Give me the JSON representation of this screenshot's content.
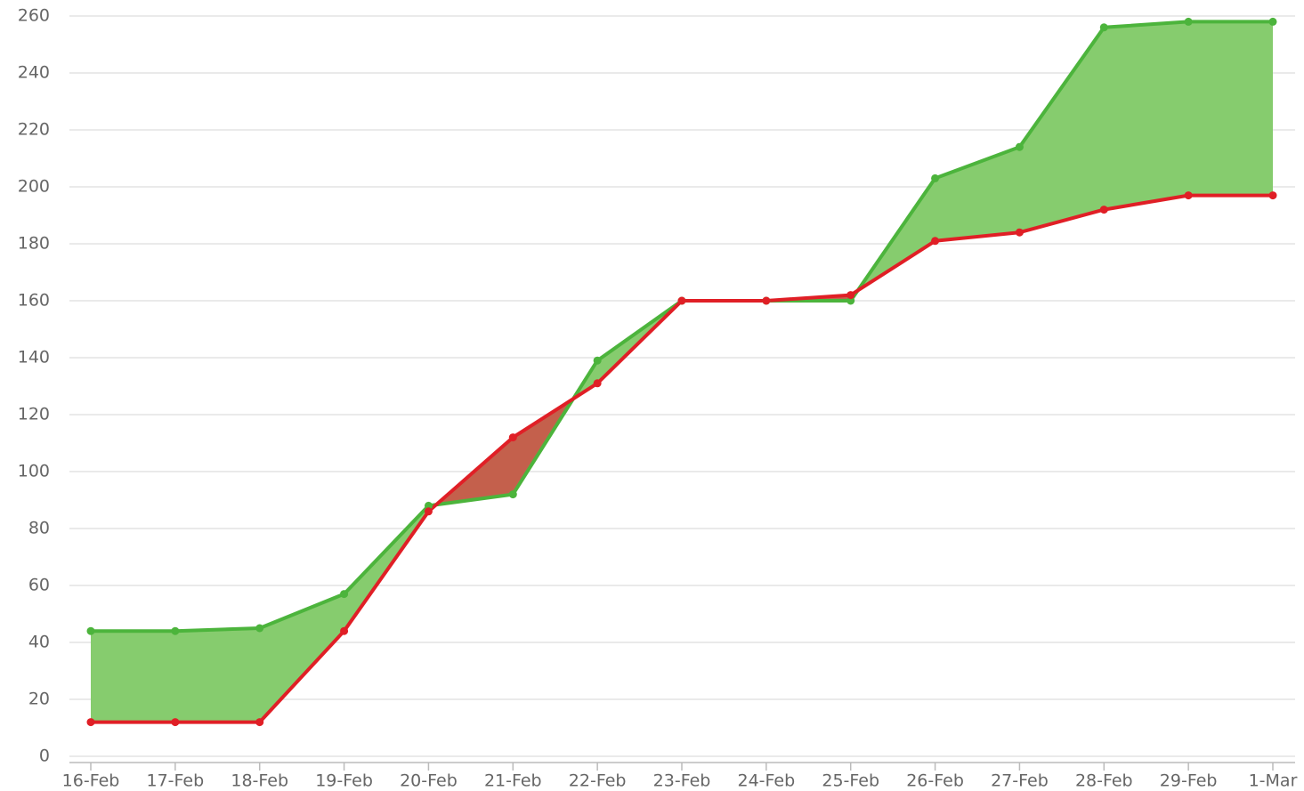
{
  "chart_data": {
    "type": "line",
    "categories": [
      "16-Feb",
      "17-Feb",
      "18-Feb",
      "19-Feb",
      "20-Feb",
      "21-Feb",
      "22-Feb",
      "23-Feb",
      "24-Feb",
      "25-Feb",
      "26-Feb",
      "27-Feb",
      "28-Feb",
      "29-Feb",
      "1-Mar"
    ],
    "series": [
      {
        "color": "#4cb43c",
        "fill": "#86cc6e",
        "values": [
          44,
          44,
          45,
          57,
          88,
          92,
          139,
          160,
          160,
          160,
          203,
          214,
          256,
          258,
          258
        ]
      },
      {
        "color": "#e01f26",
        "fill": "#c4604c",
        "values": [
          12,
          12,
          12,
          44,
          86,
          112,
          131,
          160,
          160,
          162,
          181,
          184,
          192,
          197,
          197
        ]
      }
    ],
    "ylim": [
      0,
      260
    ],
    "yticks": [
      0,
      20,
      40,
      60,
      80,
      100,
      120,
      140,
      160,
      180,
      200,
      220,
      240,
      260
    ],
    "grid": true
  }
}
